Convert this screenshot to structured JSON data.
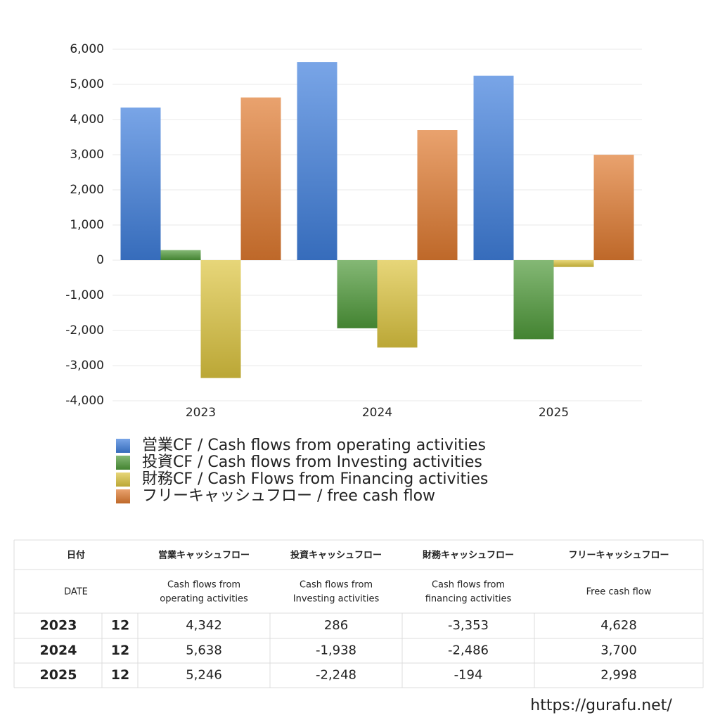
{
  "chart_data": {
    "type": "bar",
    "categories": [
      "2023",
      "2024",
      "2025"
    ],
    "series": [
      {
        "name": "営業CF / Cash flows from operating activities",
        "color": "#3f7fdc",
        "values": [
          4342,
          5638,
          5246
        ]
      },
      {
        "name": "投資CF / Cash flows from Investing activities",
        "color": "#4f9a3a",
        "values": [
          286,
          -1938,
          -2248
        ]
      },
      {
        "name": "財務CF / Cash Flows from Financing activities",
        "color": "#dcc440",
        "values": [
          -3353,
          -2486,
          -194
        ]
      },
      {
        "name": "フリーキャッシュフロー / free cash flow",
        "color": "#e07a30",
        "values": [
          4628,
          3700,
          2998
        ]
      }
    ],
    "ylim": [
      -4000,
      6000
    ],
    "yticks": [
      {
        "value": -4000,
        "label": "-4,000"
      },
      {
        "value": -3000,
        "label": "-3,000"
      },
      {
        "value": -2000,
        "label": "-2,000"
      },
      {
        "value": -1000,
        "label": "-1,000"
      },
      0,
      {
        "value": 1000,
        "label": "1,000"
      },
      {
        "value": 2000,
        "label": "2,000"
      },
      {
        "value": 3000,
        "label": "3,000"
      },
      {
        "value": 4000,
        "label": "4,000"
      },
      {
        "value": 5000,
        "label": "5,000"
      },
      {
        "value": 6000,
        "label": "6,000"
      }
    ],
    "grid": true,
    "legend": "bottom"
  },
  "table": {
    "columns": [
      {
        "jp": "日付",
        "en": "DATE"
      },
      {
        "jp": "営業キャッシュフロー",
        "en": [
          "Cash flows from",
          "operating activities"
        ]
      },
      {
        "jp": "投資キャッシュフロー",
        "en": [
          "Cash flows from",
          "Investing activities"
        ]
      },
      {
        "jp": "財務キャッシュフロー",
        "en": [
          "Cash flows from",
          "financing activities"
        ]
      },
      {
        "jp": "フリーキャッシュフロー",
        "en": "Free cash flow"
      }
    ],
    "rows": [
      [
        "2023",
        "12",
        "4,342",
        "286",
        "-3,353",
        "4,628"
      ],
      [
        "2024",
        "12",
        "5,638",
        "-1,938",
        "-2,486",
        "3,700"
      ],
      [
        "2025",
        "12",
        "5,246",
        "-2,248",
        "-194",
        "2,998"
      ]
    ]
  },
  "footer": "https://gurafu.net/"
}
